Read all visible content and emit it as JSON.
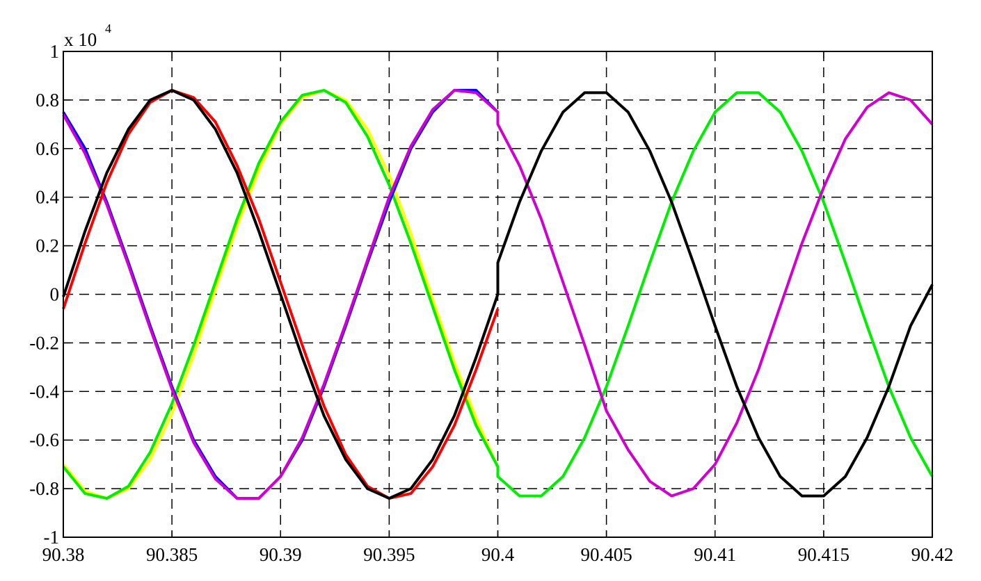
{
  "chart_data": {
    "type": "line",
    "y_scale_label": "x 10",
    "y_scale_exponent": "4",
    "x": [
      90.38,
      90.381,
      90.382,
      90.383,
      90.384,
      90.385,
      90.386,
      90.387,
      90.388,
      90.389,
      90.39,
      90.391,
      90.392,
      90.393,
      90.394,
      90.395,
      90.396,
      90.397,
      90.398,
      90.399,
      90.4,
      90.4,
      90.401,
      90.402,
      90.403,
      90.404,
      90.405,
      90.406,
      90.407,
      90.408,
      90.409,
      90.41,
      90.411,
      90.412,
      90.413,
      90.414,
      90.415,
      90.416,
      90.417,
      90.418,
      90.419,
      90.42
    ],
    "series": [
      {
        "color": "#ffff00",
        "values": [
          -0.7,
          -0.81,
          -0.84,
          -0.8,
          -0.68,
          -0.49,
          -0.25,
          0.02,
          0.28,
          0.51,
          0.7,
          0.81,
          0.84,
          0.8,
          0.68,
          0.49,
          0.25,
          -0.02,
          -0.28,
          -0.51,
          -0.71,
          null,
          null,
          null,
          null,
          null,
          null,
          null,
          null,
          null,
          null,
          null,
          null,
          null,
          null,
          null,
          null,
          null,
          null,
          null,
          null,
          null
        ]
      },
      {
        "color": "#00ee00",
        "values": [
          -0.71,
          -0.82,
          -0.84,
          -0.79,
          -0.65,
          -0.45,
          -0.21,
          0.05,
          0.31,
          0.54,
          0.71,
          0.82,
          0.84,
          0.79,
          0.65,
          0.45,
          0.21,
          -0.05,
          -0.31,
          -0.54,
          -0.71,
          -0.75,
          -0.83,
          -0.83,
          -0.75,
          -0.59,
          -0.38,
          -0.13,
          0.13,
          0.38,
          0.59,
          0.75,
          0.83,
          0.83,
          0.75,
          0.59,
          0.38,
          0.13,
          -0.13,
          -0.38,
          -0.59,
          -0.75
        ]
      },
      {
        "color": "#0000ff",
        "values": [
          0.75,
          0.6,
          0.38,
          0.13,
          -0.13,
          -0.38,
          -0.6,
          -0.75,
          -0.84,
          -0.84,
          -0.75,
          -0.6,
          -0.38,
          -0.13,
          0.13,
          0.38,
          0.6,
          0.75,
          0.84,
          0.84,
          0.75,
          null,
          null,
          null,
          null,
          null,
          null,
          null,
          null,
          null,
          null,
          null,
          null,
          null,
          null,
          null,
          null,
          null,
          null,
          null,
          null,
          null
        ]
      },
      {
        "color": "#d000d0",
        "values": [
          0.74,
          0.58,
          0.37,
          0.12,
          -0.14,
          -0.39,
          -0.61,
          -0.76,
          -0.84,
          -0.84,
          -0.75,
          -0.59,
          -0.37,
          -0.12,
          0.14,
          0.4,
          0.61,
          0.76,
          0.84,
          0.83,
          0.75,
          0.7,
          0.53,
          0.31,
          0.05,
          -0.21,
          -0.48,
          -0.64,
          -0.77,
          -0.83,
          -0.8,
          -0.7,
          -0.53,
          -0.31,
          -0.05,
          0.21,
          0.44,
          0.64,
          0.77,
          0.83,
          0.8,
          0.7
        ]
      },
      {
        "color": "#ff0000",
        "values": [
          -0.06,
          0.21,
          0.46,
          0.66,
          0.79,
          0.84,
          0.81,
          0.71,
          0.53,
          0.31,
          0.05,
          -0.21,
          -0.46,
          -0.66,
          -0.79,
          -0.84,
          -0.82,
          -0.71,
          -0.54,
          -0.31,
          -0.06,
          null,
          null,
          null,
          null,
          null,
          null,
          null,
          null,
          null,
          null,
          null,
          null,
          null,
          null,
          null,
          null,
          null,
          null,
          null,
          null,
          null
        ]
      },
      {
        "color": "#000000",
        "values": [
          -0.01,
          0.26,
          0.5,
          0.68,
          0.8,
          0.84,
          0.8,
          0.68,
          0.5,
          0.26,
          0.0,
          -0.26,
          -0.5,
          -0.68,
          -0.8,
          -0.84,
          -0.8,
          -0.68,
          -0.5,
          -0.26,
          0.0,
          0.13,
          0.38,
          0.59,
          0.75,
          0.83,
          0.83,
          0.75,
          0.59,
          0.38,
          0.13,
          -0.13,
          -0.38,
          -0.59,
          -0.75,
          -0.83,
          -0.83,
          -0.75,
          -0.59,
          -0.38,
          -0.13,
          0.04
        ]
      }
    ],
    "xlim": [
      90.38,
      90.42
    ],
    "xticks": [
      90.38,
      90.385,
      90.39,
      90.395,
      90.4,
      90.405,
      90.41,
      90.415,
      90.42
    ],
    "ylim": [
      -1,
      1
    ],
    "yticks": [
      -1,
      -0.8,
      -0.6,
      -0.4,
      -0.2,
      0,
      0.2,
      0.4,
      0.6,
      0.8,
      1
    ],
    "grid": true
  }
}
